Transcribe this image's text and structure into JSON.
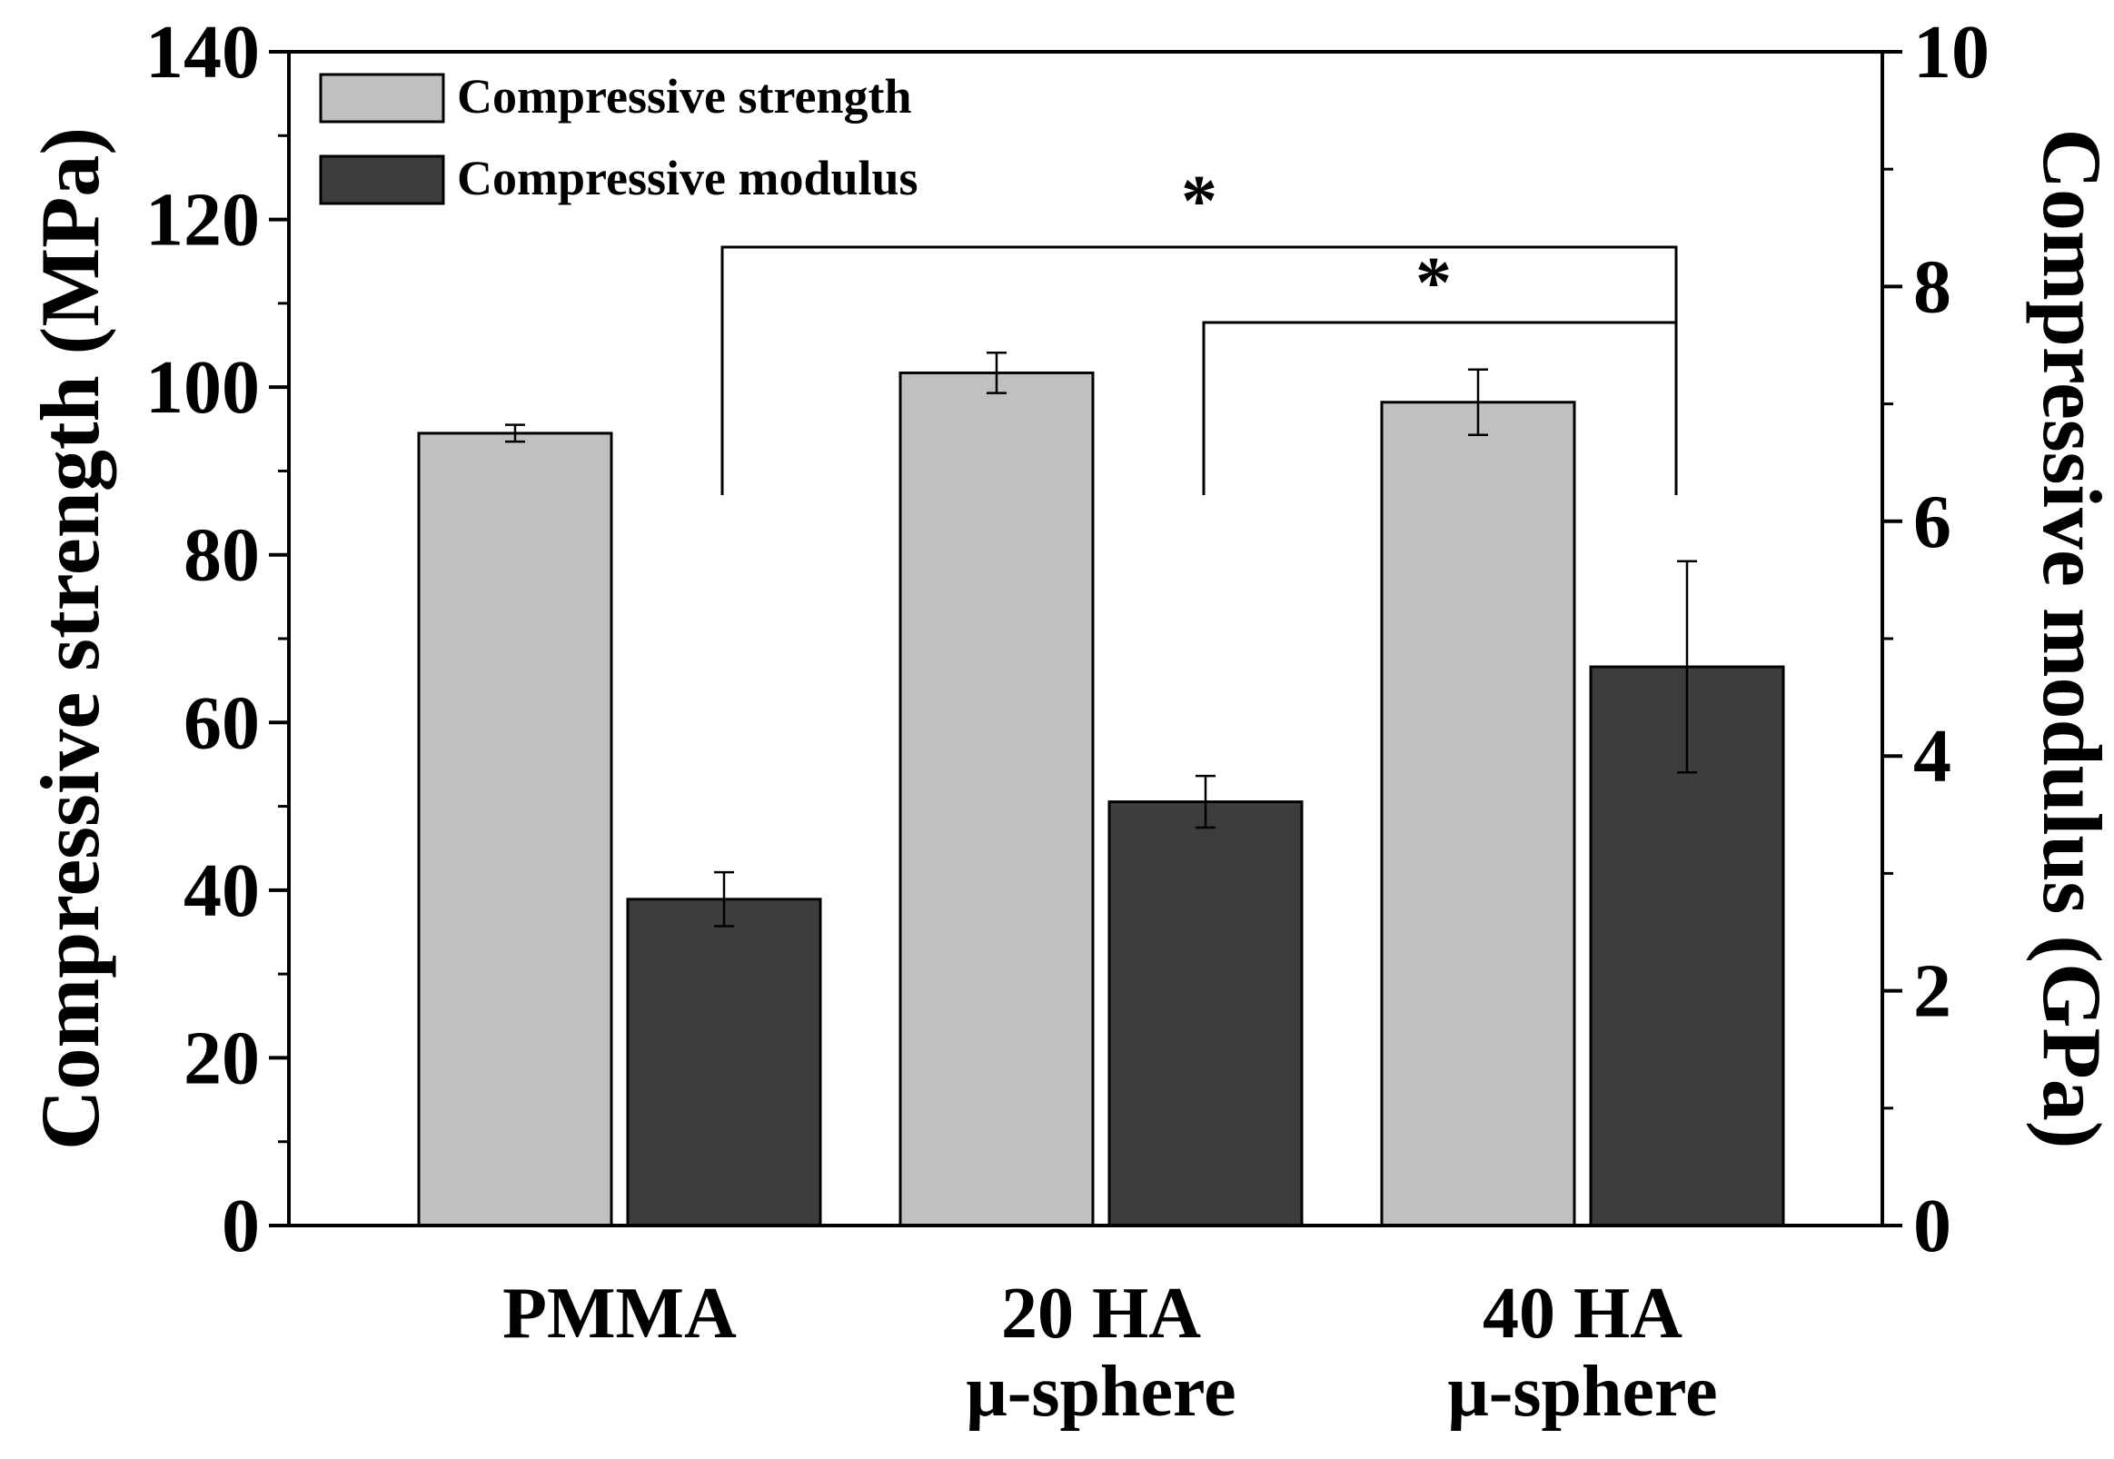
{
  "chart_data": {
    "type": "bar",
    "categories": [
      "PMMA",
      "20 HA μ-sphere",
      "40 HA μ-sphere"
    ],
    "category_label_lines": [
      [
        "PMMA"
      ],
      [
        "20 HA",
        "μ-sphere"
      ],
      [
        "40 HA",
        "μ-sphere"
      ]
    ],
    "series": [
      {
        "name": "Compressive strength",
        "axis": "left",
        "color": "#c0c0c0",
        "values": [
          94.5,
          101.7,
          98.2
        ],
        "errors": [
          1.0,
          2.4,
          3.9
        ]
      },
      {
        "name": "Compressive modulus",
        "axis": "right",
        "color": "#3d3d3d",
        "values": [
          2.78,
          3.61,
          4.76
        ],
        "errors": [
          0.23,
          0.22,
          0.9
        ]
      }
    ],
    "ylabel": "Compressive strength (MPa)",
    "y2label": "Compressive modulus (GPa)",
    "ylim": [
      0,
      140
    ],
    "yticks": [
      "0",
      "20",
      "40",
      "60",
      "80",
      "100",
      "120",
      "140"
    ],
    "y2lim": [
      0,
      10
    ],
    "y2ticks": [
      "0",
      "2",
      "4",
      "6",
      "8",
      "10"
    ],
    "legend_position": "top-left",
    "significance": [
      {
        "from": "PMMA",
        "to": "40 HA μ-sphere",
        "label": "*"
      },
      {
        "from": "20 HA μ-sphere",
        "to": "40 HA μ-sphere",
        "label": "*"
      }
    ]
  }
}
